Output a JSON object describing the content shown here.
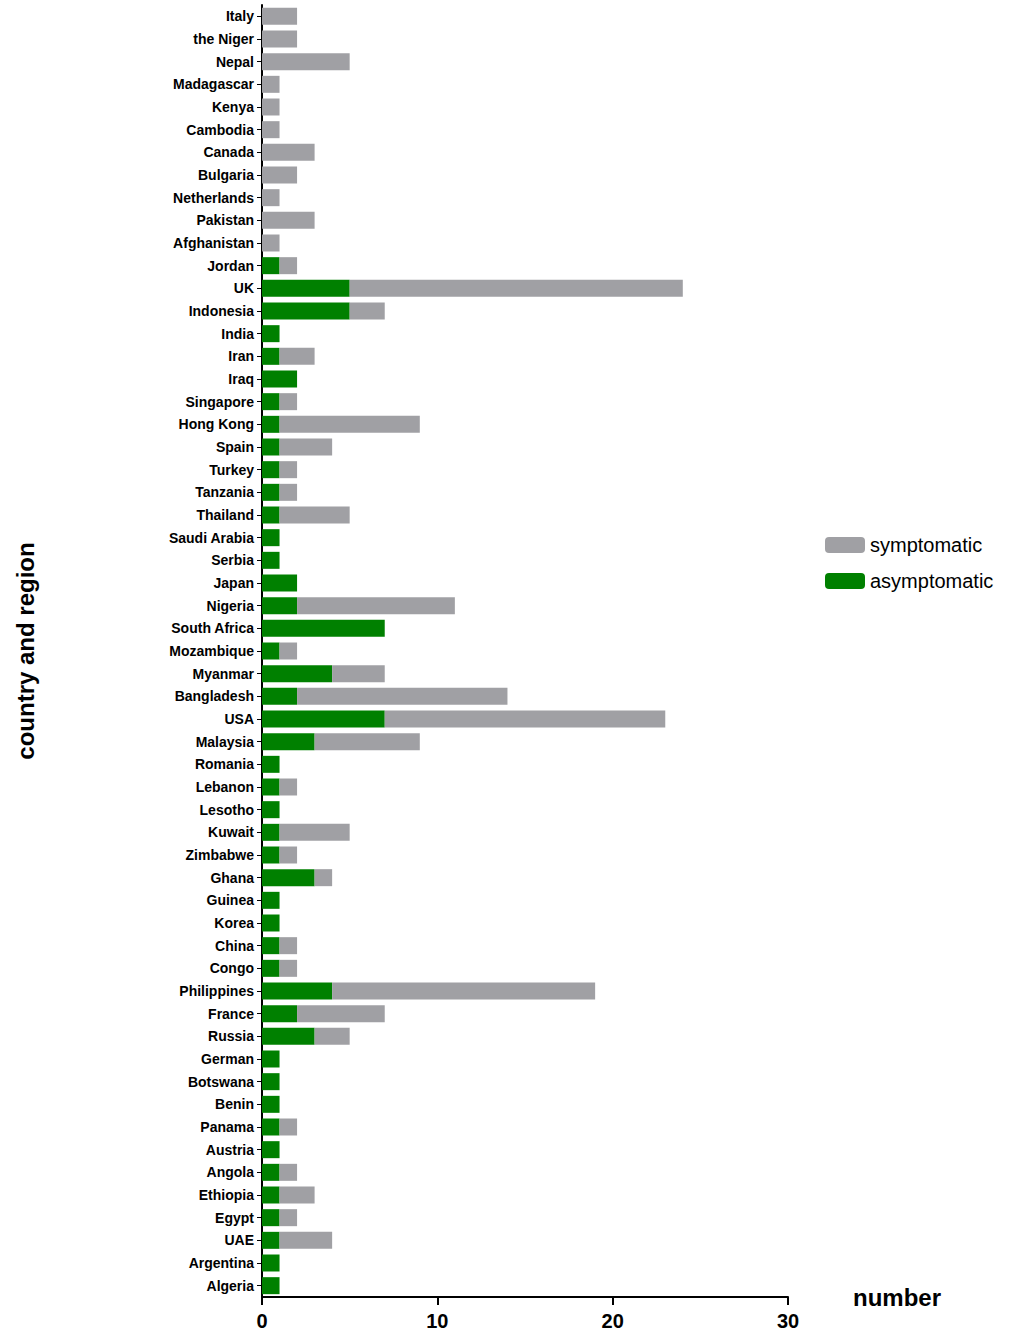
{
  "chart_data": {
    "type": "bar",
    "orientation": "horizontal",
    "stacked": true,
    "x_label": "number",
    "y_label": "country and region",
    "categories": [
      "Italy",
      "the Niger",
      "Nepal",
      "Madagascar",
      "Kenya",
      "Cambodia",
      "Canada",
      "Bulgaria",
      "Netherlands",
      "Pakistan",
      "Afghanistan",
      "Jordan",
      "UK",
      "Indonesia",
      "India",
      "Iran",
      "Iraq",
      "Singapore",
      "Hong Kong",
      "Spain",
      "Turkey",
      "Tanzania",
      "Thailand",
      "Saudi Arabia",
      "Serbia",
      "Japan",
      "Nigeria",
      "South Africa",
      "Mozambique",
      "Myanmar",
      "Bangladesh",
      "USA",
      "Malaysia",
      "Romania",
      "Lebanon",
      "Lesotho",
      "Kuwait",
      "Zimbabwe",
      "Ghana",
      "Guinea",
      "Korea",
      "China",
      "Congo",
      "Philippines",
      "France",
      "Russia",
      "German",
      "Botswana",
      "Benin",
      "Panama",
      "Austria",
      "Angola",
      "Ethiopia",
      "Egypt",
      "UAE",
      "Argentina",
      "Algeria"
    ],
    "series": [
      {
        "name": "symptomatic",
        "color": "#a0a0a4",
        "values": [
          2,
          2,
          5,
          1,
          1,
          1,
          3,
          2,
          1,
          3,
          1,
          1,
          19,
          2,
          0,
          2,
          0,
          1,
          8,
          3,
          1,
          1,
          4,
          0,
          0,
          0,
          9,
          0,
          1,
          3,
          12,
          16,
          6,
          0,
          1,
          0,
          4,
          1,
          1,
          0,
          0,
          1,
          1,
          15,
          5,
          2,
          0,
          0,
          0,
          1,
          0,
          1,
          2,
          1,
          3,
          0,
          0
        ]
      },
      {
        "name": "asymptomatic",
        "color": "#008000",
        "values": [
          0,
          0,
          0,
          0,
          0,
          0,
          0,
          0,
          0,
          0,
          0,
          1,
          5,
          5,
          1,
          1,
          2,
          1,
          1,
          1,
          1,
          1,
          1,
          1,
          1,
          2,
          2,
          7,
          1,
          4,
          2,
          7,
          3,
          1,
          1,
          1,
          1,
          1,
          3,
          1,
          1,
          1,
          1,
          4,
          2,
          3,
          1,
          1,
          1,
          1,
          1,
          1,
          1,
          1,
          1,
          1,
          1
        ]
      }
    ],
    "xlim": [
      0,
      30
    ],
    "xticks": [
      0,
      10,
      20,
      30
    ],
    "grid": false,
    "legend": "right"
  }
}
